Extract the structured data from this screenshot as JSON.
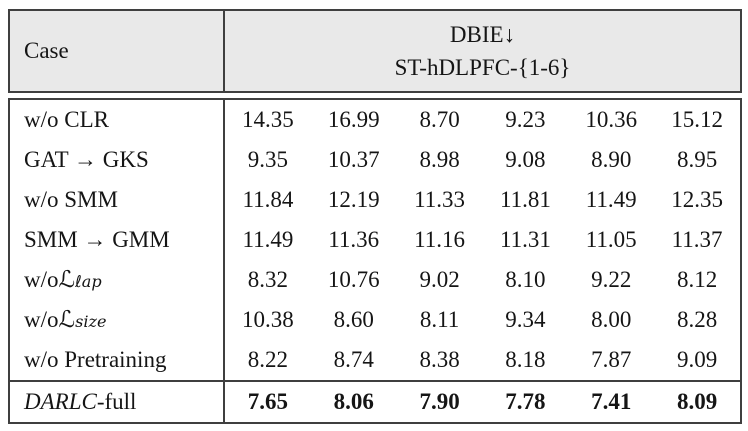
{
  "table": {
    "header": {
      "case_label": "Case",
      "metric_name": "DBIE",
      "metric_arrow": "↓",
      "dataset_label": "ST-hDLPFC-{1-6}"
    },
    "colors": {
      "header_bg": "#e9e9e9",
      "border": "#3f3f3f",
      "text": "#151515"
    },
    "rows": [
      {
        "label_parts": [
          {
            "t": "w/o CLR"
          }
        ],
        "values": [
          "14.35",
          "16.99",
          "8.70",
          "9.23",
          "10.36",
          "15.12"
        ],
        "bold": false
      },
      {
        "label_parts": [
          {
            "t": "GAT → GKS"
          }
        ],
        "values": [
          "9.35",
          "10.37",
          "8.98",
          "9.08",
          "8.90",
          "8.95"
        ],
        "bold": false
      },
      {
        "label_parts": [
          {
            "t": "w/o SMM"
          }
        ],
        "values": [
          "11.84",
          "12.19",
          "11.33",
          "11.81",
          "11.49",
          "12.35"
        ],
        "bold": false
      },
      {
        "label_parts": [
          {
            "t": "SMM → GMM"
          }
        ],
        "values": [
          "11.49",
          "11.36",
          "11.16",
          "11.31",
          "11.05",
          "11.37"
        ],
        "bold": false
      },
      {
        "label_parts": [
          {
            "t": "w/o "
          },
          {
            "t": "ℒ",
            "style": "script"
          },
          {
            "t": "ℓap",
            "style": "sub"
          }
        ],
        "values": [
          "8.32",
          "10.76",
          "9.02",
          "8.10",
          "9.22",
          "8.12"
        ],
        "bold": false
      },
      {
        "label_parts": [
          {
            "t": "w/o "
          },
          {
            "t": "ℒ",
            "style": "script"
          },
          {
            "t": "size",
            "style": "sub"
          }
        ],
        "values": [
          "10.38",
          "8.60",
          "8.11",
          "9.34",
          "8.00",
          "8.28"
        ],
        "bold": false
      },
      {
        "label_parts": [
          {
            "t": "w/o Pretraining"
          }
        ],
        "values": [
          "8.22",
          "8.74",
          "8.38",
          "8.18",
          "7.87",
          "9.09"
        ],
        "bold": false
      },
      {
        "label_parts": [
          {
            "t": "DARLC",
            "style": "italic"
          },
          {
            "t": "-full"
          }
        ],
        "values": [
          "7.65",
          "8.06",
          "7.90",
          "7.78",
          "7.41",
          "8.09"
        ],
        "bold": true
      }
    ]
  }
}
